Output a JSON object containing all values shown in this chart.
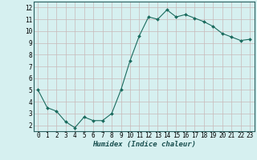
{
  "x": [
    0,
    1,
    2,
    3,
    4,
    5,
    6,
    7,
    8,
    9,
    10,
    11,
    12,
    13,
    14,
    15,
    16,
    17,
    18,
    19,
    20,
    21,
    22,
    23
  ],
  "y": [
    5.0,
    3.5,
    3.2,
    2.3,
    1.8,
    2.7,
    2.4,
    2.4,
    3.0,
    5.0,
    7.5,
    9.6,
    11.2,
    11.0,
    11.8,
    11.2,
    11.4,
    11.1,
    10.8,
    10.4,
    9.8,
    9.5,
    9.2,
    9.3
  ],
  "line_color": "#1a6b5e",
  "marker": "D",
  "marker_size": 2.0,
  "bg_color": "#d6f0f0",
  "grid_color_major": "#c8b8b8",
  "grid_color_minor": "#c8b8b8",
  "xlabel": "Humidex (Indice chaleur)",
  "xlim": [
    -0.5,
    23.5
  ],
  "ylim": [
    1.5,
    12.5
  ],
  "yticks": [
    2,
    3,
    4,
    5,
    6,
    7,
    8,
    9,
    10,
    11,
    12
  ],
  "xticks": [
    0,
    1,
    2,
    3,
    4,
    5,
    6,
    7,
    8,
    9,
    10,
    11,
    12,
    13,
    14,
    15,
    16,
    17,
    18,
    19,
    20,
    21,
    22,
    23
  ],
  "tick_fontsize": 5.5,
  "xlabel_fontsize": 6.5,
  "linewidth": 0.8,
  "spine_color": "#2a6060"
}
